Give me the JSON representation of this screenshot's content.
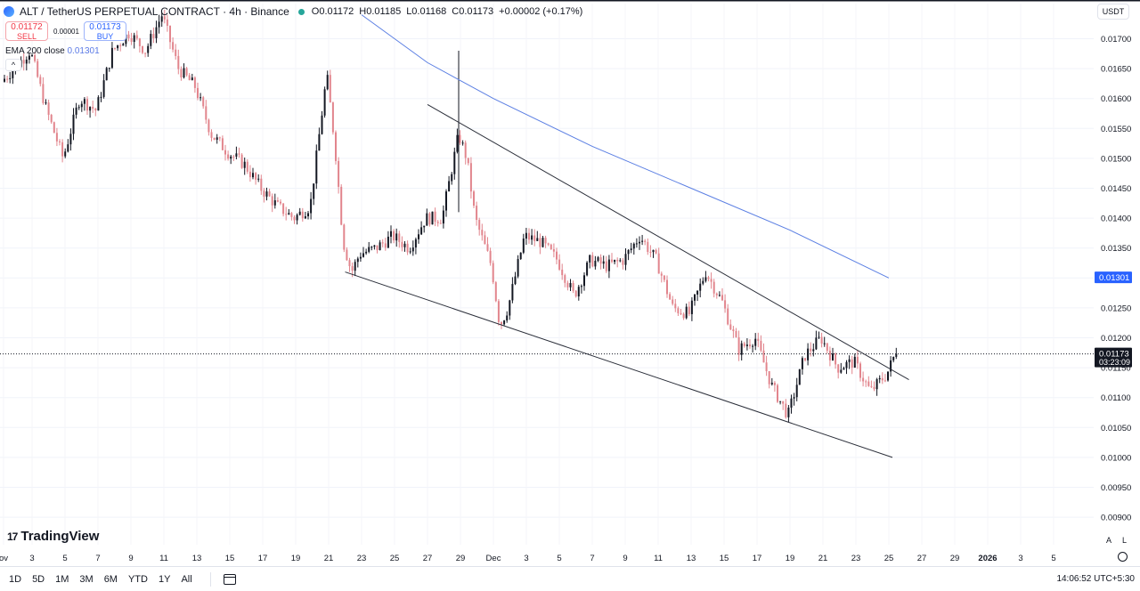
{
  "header": {
    "symbol": "ALT / TetherUS PERPETUAL CONTRACT · 4h · Binance",
    "open": "O0.01172",
    "high": "H0.01185",
    "low": "L0.01168",
    "close": "C0.01173",
    "change": "+0.00002 (+0.17%)"
  },
  "trade": {
    "sell_price": "0.01172",
    "sell_label": "SELL",
    "spread": "0.00001",
    "buy_price": "0.01173",
    "buy_label": "BUY"
  },
  "indicator": {
    "name": "EMA 200 close",
    "value": "0.01301"
  },
  "currency": "USDT",
  "logo_text": "TradingView",
  "logo_mark": "17",
  "time_ranges": [
    "1D",
    "5D",
    "1M",
    "3M",
    "6M",
    "YTD",
    "1Y",
    "All"
  ],
  "clock": "14:06:52 UTC+5:30",
  "axis_buttons": {
    "auto": "A",
    "log": "L"
  },
  "colors": {
    "up": "#131722",
    "down": "#e2858d",
    "ema": "#5b7fe3",
    "badge": "#2962ff",
    "price_badge": "#131722"
  },
  "chart_data": {
    "type": "candlestick",
    "price_axis": {
      "ticks": [
        "0.01700",
        "0.01650",
        "0.01600",
        "0.01550",
        "0.01500",
        "0.01450",
        "0.01400",
        "0.01350",
        "0.01300",
        "0.01250",
        "0.01200",
        "0.01150",
        "0.01100",
        "0.01050",
        "0.01000",
        "0.00950",
        "0.00900"
      ],
      "ylim": [
        0.00885,
        0.0173
      ]
    },
    "time_axis": {
      "ticks": [
        "ov",
        "3",
        "5",
        "7",
        "9",
        "11",
        "13",
        "15",
        "17",
        "19",
        "21",
        "23",
        "25",
        "27",
        "29",
        "Dec",
        "3",
        "5",
        "7",
        "9",
        "11",
        "13",
        "15",
        "17",
        "19",
        "21",
        "23",
        "25",
        "27",
        "29",
        "2026",
        "3",
        "5"
      ],
      "bold_ticks": [
        "2026"
      ]
    },
    "current_price": "0.01173",
    "countdown": "03:23:09",
    "ema_badge": "0.01301",
    "ema200": {
      "name": "EMA 200 close",
      "points": [
        [
          "Nov 23",
          0.0174
        ],
        [
          "Nov 27",
          0.0166
        ],
        [
          "Dec 1",
          0.016
        ],
        [
          "Dec 7",
          0.0152
        ],
        [
          "Dec 13",
          0.0145
        ],
        [
          "Dec 19",
          0.0138
        ],
        [
          "Dec 25",
          0.013
        ]
      ]
    },
    "trendlines": [
      {
        "name": "upper",
        "from": [
          "Nov 27",
          0.0159
        ],
        "to": [
          "Dec 26",
          0.0113
        ]
      },
      {
        "name": "lower",
        "from": [
          "Nov 22",
          0.0131
        ],
        "to": [
          "Dec 25",
          0.01
        ]
      }
    ],
    "price_path": [
      [
        "Nov 1",
        0.0162
      ],
      [
        "Nov 3",
        0.0168
      ],
      [
        "Nov 4",
        0.0158
      ],
      [
        "Nov 5",
        0.015
      ],
      [
        "Nov 6",
        0.016
      ],
      [
        "Nov 7",
        0.0158
      ],
      [
        "Nov 8",
        0.0168
      ],
      [
        "Nov 9",
        0.0171
      ],
      [
        "Nov 10",
        0.0168
      ],
      [
        "Nov 11",
        0.0174
      ],
      [
        "Nov 12",
        0.0165
      ],
      [
        "Nov 13",
        0.0162
      ],
      [
        "Nov 14",
        0.0154
      ],
      [
        "Nov 15",
        0.0151
      ],
      [
        "Nov 16",
        0.0149
      ],
      [
        "Nov 17",
        0.0145
      ],
      [
        "Nov 18",
        0.0142
      ],
      [
        "Nov 19",
        0.014
      ],
      [
        "Nov 20",
        0.0142
      ],
      [
        "Nov 21",
        0.0164
      ],
      [
        "Nov 21.5",
        0.0152
      ],
      [
        "Nov 22",
        0.0136
      ],
      [
        "Nov 22.5",
        0.0131
      ],
      [
        "Nov 23",
        0.0134
      ],
      [
        "Nov 24",
        0.0135
      ],
      [
        "Nov 25",
        0.0137
      ],
      [
        "Nov 26",
        0.0135
      ],
      [
        "Nov 27",
        0.014
      ],
      [
        "Nov 28",
        0.014
      ],
      [
        "Nov 29",
        0.0154
      ],
      [
        "Nov 29.5",
        0.015
      ],
      [
        "Nov 30",
        0.014
      ],
      [
        "Dec 1",
        0.0132
      ],
      [
        "Dec 1.5",
        0.0122
      ],
      [
        "Dec 2",
        0.0125
      ],
      [
        "Dec 3",
        0.0137
      ],
      [
        "Dec 4",
        0.0136
      ],
      [
        "Dec 5",
        0.0133
      ],
      [
        "Dec 6",
        0.0127
      ],
      [
        "Dec 7",
        0.0133
      ],
      [
        "Dec 8",
        0.0132
      ],
      [
        "Dec 9",
        0.0133
      ],
      [
        "Dec 10",
        0.0137
      ],
      [
        "Dec 11",
        0.0133
      ],
      [
        "Dec 12",
        0.0125
      ],
      [
        "Dec 13",
        0.0124
      ],
      [
        "Dec 14",
        0.0131
      ],
      [
        "Dec 15",
        0.0126
      ],
      [
        "Dec 16",
        0.0118
      ],
      [
        "Dec 17",
        0.012
      ],
      [
        "Dec 18",
        0.0112
      ],
      [
        "Dec 19",
        0.0107
      ],
      [
        "Dec 20",
        0.0117
      ],
      [
        "Dec 21",
        0.012
      ],
      [
        "Dec 22",
        0.0115
      ],
      [
        "Dec 23",
        0.0116
      ],
      [
        "Dec 24",
        0.0111
      ],
      [
        "Dec 25",
        0.0114
      ],
      [
        "Dec 25.5",
        0.01173
      ]
    ],
    "spike": {
      "date": "Nov 29",
      "high": 0.0168
    }
  }
}
